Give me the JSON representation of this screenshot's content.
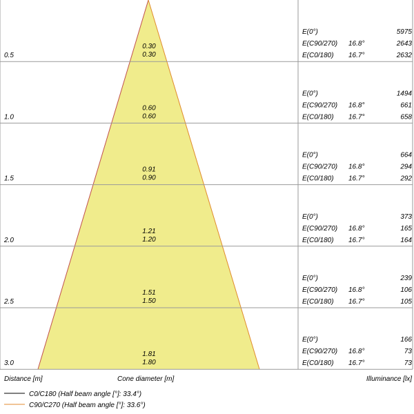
{
  "rows": [
    {
      "distance": "0.5",
      "diameters": [
        "0.30",
        "0.30"
      ],
      "illuminance": [
        {
          "label": "E(0°)",
          "value": "5975"
        },
        {
          "label": "E(C90/270)",
          "angle": "16.8°",
          "value": "2643"
        },
        {
          "label": "E(C0/180)",
          "angle": "16.7°",
          "value": "2632"
        }
      ]
    },
    {
      "distance": "1.0",
      "diameters": [
        "0.60",
        "0.60"
      ],
      "illuminance": [
        {
          "label": "E(0°)",
          "value": "1494"
        },
        {
          "label": "E(C90/270)",
          "angle": "16.8°",
          "value": "661"
        },
        {
          "label": "E(C0/180)",
          "angle": "16.7°",
          "value": "658"
        }
      ]
    },
    {
      "distance": "1.5",
      "diameters": [
        "0.91",
        "0.90"
      ],
      "illuminance": [
        {
          "label": "E(0°)",
          "value": "664"
        },
        {
          "label": "E(C90/270)",
          "angle": "16.8°",
          "value": "294"
        },
        {
          "label": "E(C0/180)",
          "angle": "16.7°",
          "value": "292"
        }
      ]
    },
    {
      "distance": "2.0",
      "diameters": [
        "1.21",
        "1.20"
      ],
      "illuminance": [
        {
          "label": "E(0°)",
          "value": "373"
        },
        {
          "label": "E(C90/270)",
          "angle": "16.8°",
          "value": "165"
        },
        {
          "label": "E(C0/180)",
          "angle": "16.7°",
          "value": "164"
        }
      ]
    },
    {
      "distance": "2.5",
      "diameters": [
        "1.51",
        "1.50"
      ],
      "illuminance": [
        {
          "label": "E(0°)",
          "value": "239"
        },
        {
          "label": "E(C90/270)",
          "angle": "16.8°",
          "value": "106"
        },
        {
          "label": "E(C0/180)",
          "angle": "16.7°",
          "value": "105"
        }
      ]
    },
    {
      "distance": "3.0",
      "diameters": [
        "1.81",
        "1.80"
      ],
      "illuminance": [
        {
          "label": "E(0°)",
          "value": "166"
        },
        {
          "label": "E(C90/270)",
          "angle": "16.8°",
          "value": "73"
        },
        {
          "label": "E(C0/180)",
          "angle": "16.7°",
          "value": "73"
        }
      ]
    }
  ],
  "axis_labels": {
    "distance": "Distance [m]",
    "cone": "Cone diameter [m]",
    "illuminance": "Illuminance [lx]"
  },
  "legend": [
    {
      "label": "C0/C180 (Half beam angle [°]: 33.4°)",
      "color": "#000000"
    },
    {
      "label": "C90/C270 (Half beam angle [°]: 33.6°)",
      "color": "#e08a2c"
    }
  ]
}
